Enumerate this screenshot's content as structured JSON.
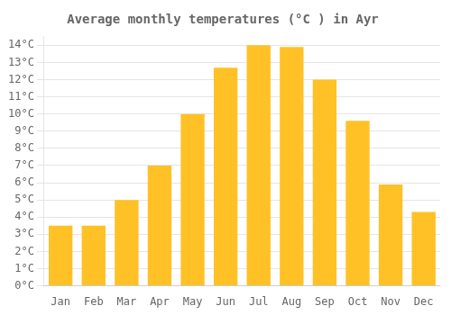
{
  "chart_data": {
    "type": "bar",
    "title": "Average monthly temperatures (°C ) in Ayr",
    "categories": [
      "Jan",
      "Feb",
      "Mar",
      "Apr",
      "May",
      "Jun",
      "Jul",
      "Aug",
      "Sep",
      "Oct",
      "Nov",
      "Dec"
    ],
    "values": [
      3.5,
      3.5,
      5.0,
      7.0,
      10.0,
      12.7,
      14.0,
      13.9,
      12.0,
      9.6,
      5.9,
      4.3
    ],
    "color": "#FFC125",
    "ylim": [
      0,
      14.5
    ],
    "yticks": [
      {
        "value": 0,
        "label": "0°C"
      },
      {
        "value": 1,
        "label": "1°C"
      },
      {
        "value": 2,
        "label": "2°C"
      },
      {
        "value": 3,
        "label": "3°C"
      },
      {
        "value": 4,
        "label": "4°C"
      },
      {
        "value": 5,
        "label": "5°C"
      },
      {
        "value": 6,
        "label": "6°C"
      },
      {
        "value": 7,
        "label": "7°C"
      },
      {
        "value": 8,
        "label": "8°C"
      },
      {
        "value": 9,
        "label": "9°C"
      },
      {
        "value": 10,
        "label": "10°C"
      },
      {
        "value": 11,
        "label": "11°C"
      },
      {
        "value": 12,
        "label": "12°C"
      },
      {
        "value": 13,
        "label": "13°C"
      },
      {
        "value": 14,
        "label": "14°C"
      }
    ],
    "grid": true
  }
}
